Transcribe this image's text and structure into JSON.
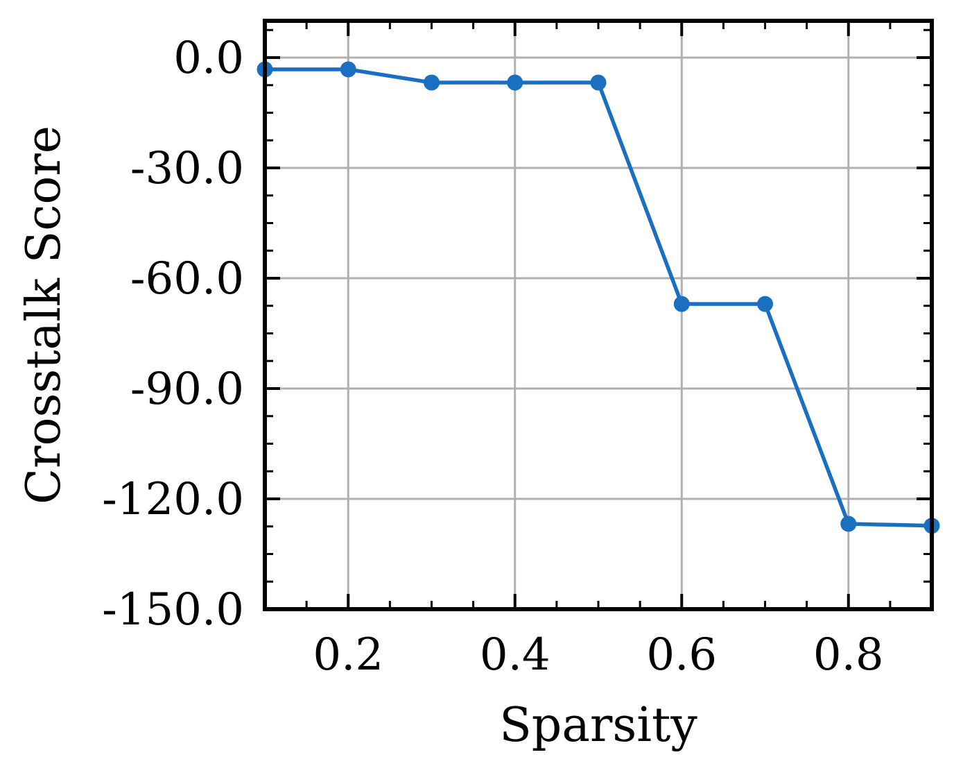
{
  "chart_data": {
    "type": "line",
    "title": "",
    "xlabel": "Sparsity",
    "ylabel": "Crosstalk Score",
    "xlim": [
      0.1,
      0.9
    ],
    "ylim": [
      -150,
      10
    ],
    "grid": true,
    "x_ticks": [
      0.2,
      0.4,
      0.6,
      0.8
    ],
    "x_tick_labels": [
      "0.2",
      "0.4",
      "0.6",
      "0.8"
    ],
    "y_ticks": [
      0,
      -30,
      -60,
      -90,
      -120,
      -150
    ],
    "y_tick_labels": [
      "0.0",
      "-30.0",
      "-60.0",
      "-90.0",
      "-120.0",
      "-150.0"
    ],
    "series": [
      {
        "x": [
          0.1,
          0.2,
          0.3,
          0.4,
          0.5,
          0.6,
          0.7,
          0.8,
          0.9
        ],
        "y": [
          -3.2,
          -3.2,
          -6.8,
          -6.8,
          -6.8,
          -67.0,
          -67.0,
          -126.8,
          -127.3
        ],
        "color": "#1a6fc0"
      }
    ]
  }
}
